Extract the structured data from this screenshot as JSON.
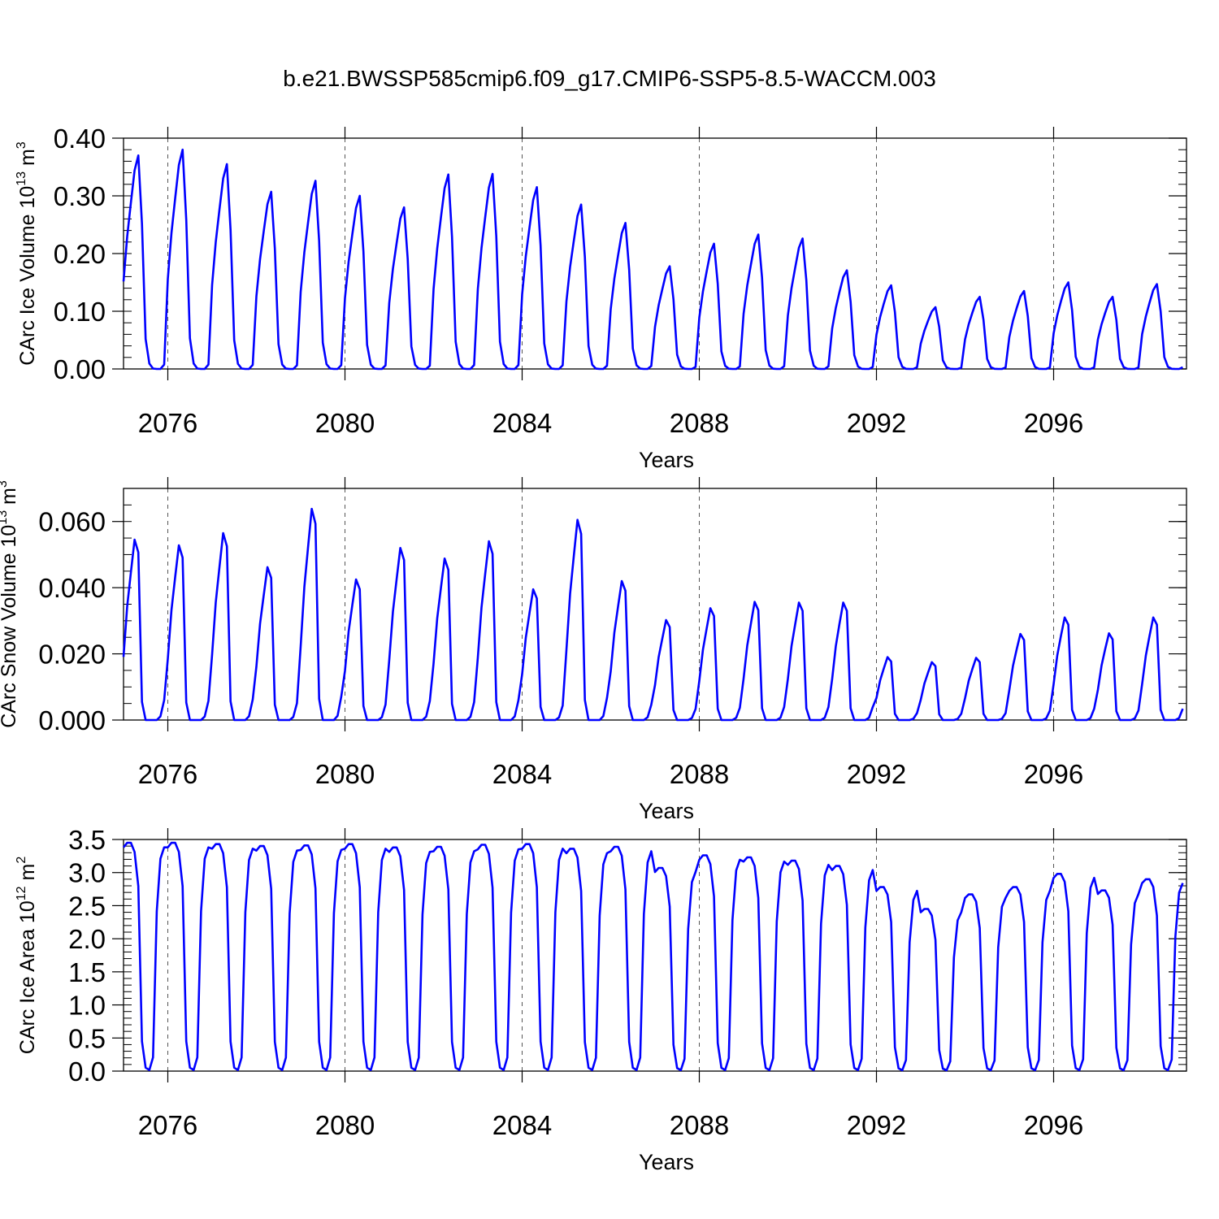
{
  "title": "b.e21.BWSSP585cmip6.f09_g17.CMIP6-SSP5-8.5-WACCM.003",
  "colors": {
    "line": "#0000ff",
    "axis": "#000000",
    "grid": "#555555"
  },
  "chart_data": [
    {
      "type": "line",
      "id": "ice-volume",
      "ylabel": {
        "main": "CArc Ice Volume 10",
        "exp": "13",
        "unit": " m",
        "unitexp": "3"
      },
      "xlabel": "Years",
      "xlim": [
        2075.0,
        2099.0
      ],
      "ylim": [
        0,
        0.4
      ],
      "yticks": [
        0,
        0.1,
        0.2,
        0.3,
        0.4
      ],
      "ytick_labels": [
        "0.00",
        "0.10",
        "0.20",
        "0.30",
        "0.40"
      ],
      "yminor_step": 0.02,
      "xticks": [
        2076,
        2080,
        2084,
        2088,
        2092,
        2096
      ],
      "xtick_labels": [
        "2076",
        "2080",
        "2084",
        "2088",
        "2092",
        "2096"
      ],
      "grid_years": [
        2076,
        2080,
        2084,
        2088,
        2092,
        2096
      ],
      "start": 2075.0,
      "step": 0.08333,
      "monthly_shape": [
        0.41,
        0.62,
        0.78,
        0.93,
        1.0,
        0.68,
        0.14,
        0.025,
        0.002,
        0.0,
        0.0,
        0.02
      ],
      "annual_peaks": [
        0.37,
        0.38,
        0.355,
        0.307,
        0.326,
        0.3,
        0.28,
        0.337,
        0.338,
        0.315,
        0.285,
        0.253,
        0.178,
        0.217,
        0.233,
        0.226,
        0.171,
        0.145,
        0.107,
        0.125,
        0.135,
        0.15,
        0.125,
        0.147
      ]
    },
    {
      "type": "line",
      "id": "snow-volume",
      "ylabel": {
        "main": "CArc Snow Volume 10",
        "exp": "13",
        "unit": " m",
        "unitexp": "3"
      },
      "xlabel": "Years",
      "xlim": [
        2075.0,
        2099.0
      ],
      "ylim": [
        0,
        0.07
      ],
      "yticks": [
        0,
        0.02,
        0.04,
        0.06
      ],
      "ytick_labels": [
        "0.000",
        "0.020",
        "0.040",
        "0.060"
      ],
      "yminor_step": 0.005,
      "xticks": [
        2076,
        2080,
        2084,
        2088,
        2092,
        2096
      ],
      "xtick_labels": [
        "2076",
        "2080",
        "2084",
        "2088",
        "2092",
        "2096"
      ],
      "grid_years": [
        2076,
        2080,
        2084,
        2088,
        2092,
        2096
      ],
      "start": 2075.0,
      "step": 0.08333,
      "monthly_shape": [
        0.35,
        0.63,
        0.82,
        1.0,
        0.93,
        0.1,
        0.0,
        0.0,
        0.0,
        0.0,
        0.02,
        0.11
      ],
      "annual_peaks": [
        0.0545,
        0.0528,
        0.0565,
        0.0462,
        0.0638,
        0.0425,
        0.052,
        0.0488,
        0.054,
        0.0395,
        0.0605,
        0.042,
        0.0302,
        0.0338,
        0.0357,
        0.0355,
        0.0355,
        0.019,
        0.0175,
        0.0188,
        0.026,
        0.031,
        0.0262,
        0.031
      ]
    },
    {
      "type": "line",
      "id": "ice-area",
      "ylabel": {
        "main": "CArc Ice Area 10",
        "exp": "12",
        "unit": " m",
        "unitexp": "2"
      },
      "xlabel": "Years",
      "xlim": [
        2075.0,
        2099.0
      ],
      "ylim": [
        0,
        3.5
      ],
      "yticks": [
        0,
        0.5,
        1.0,
        1.5,
        2.0,
        2.5,
        3.0,
        3.5
      ],
      "ytick_labels": [
        "0.0",
        "0.5",
        "1.0",
        "1.5",
        "2.0",
        "2.5",
        "3.0",
        "3.5"
      ],
      "yminor_step": 0.1,
      "xticks": [
        2076,
        2080,
        2084,
        2088,
        2092,
        2096
      ],
      "xtick_labels": [
        "2076",
        "2080",
        "2084",
        "2088",
        "2092",
        "2096"
      ],
      "grid_years": [
        2076,
        2080,
        2084,
        2088,
        2092,
        2096
      ],
      "start": 2075.0,
      "step": 0.08333,
      "monthly_shape": [
        0.98,
        1.0,
        1.0,
        0.96,
        0.81,
        0.13,
        0.015,
        0.005,
        0.06,
        0.7,
        0.93,
        0.98
      ],
      "annual_peaks": [
        3.45,
        3.45,
        3.43,
        3.4,
        3.41,
        3.43,
        3.38,
        3.39,
        3.42,
        3.43,
        3.36,
        3.39,
        3.07,
        3.26,
        3.23,
        3.18,
        3.1,
        2.78,
        2.45,
        2.67,
        2.78,
        2.98,
        2.73,
        2.9
      ]
    }
  ]
}
